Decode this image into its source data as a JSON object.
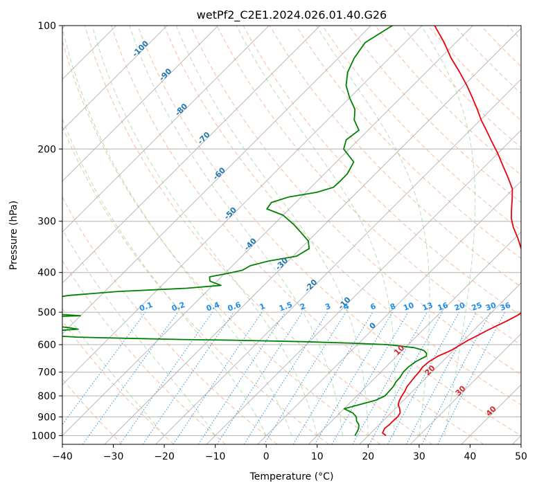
{
  "chart_data": {
    "type": "line",
    "title": "wetPf2_C2E1.2024.026.01.40.G26",
    "xlabel": "Temperature (°C)",
    "ylabel": "Pressure (hPa)",
    "xlim": [
      -40,
      50
    ],
    "ylim": [
      1050,
      100
    ],
    "y_scale": "log",
    "grid": true,
    "x_ticks": [
      -40,
      -30,
      -20,
      -10,
      0,
      10,
      20,
      30,
      40,
      50
    ],
    "y_ticks": [
      100,
      200,
      300,
      400,
      500,
      600,
      700,
      800,
      900,
      1000
    ],
    "colors": {
      "temperature": "#e8000b",
      "dewpoint": "#008000",
      "isotherm": "#a9a9a9",
      "dry_adiabat": "#f4a582",
      "moist_adiabat": "#74c476",
      "mixing_ratio": "#1f8ee8",
      "isotherm_label": "#1f77b4",
      "warm_label": "#d62728"
    },
    "series": [
      {
        "key": "temperature",
        "pressure": [
          1000,
          985,
          960,
          940,
          920,
          900,
          880,
          860,
          840,
          820,
          800,
          780,
          760,
          740,
          720,
          700,
          680,
          660,
          640,
          620,
          600,
          585,
          570,
          555,
          540,
          525,
          510,
          500,
          490,
          470,
          450,
          430,
          410,
          390,
          370,
          350,
          330,
          310,
          295,
          280,
          265,
          250,
          235,
          220,
          205,
          190,
          180,
          170,
          160,
          150,
          140,
          130,
          120,
          110,
          100
        ],
        "values": [
          23.5,
          22.3,
          21.8,
          22.0,
          22.0,
          22.1,
          21.8,
          20.9,
          19.8,
          19.2,
          18.8,
          18.5,
          18.0,
          17.8,
          17.6,
          17.5,
          17.2,
          17.4,
          18.1,
          19.5,
          20.3,
          20.9,
          21.8,
          22.6,
          23.6,
          24.7,
          25.6,
          26.0,
          25.6,
          25.2,
          24.4,
          23.0,
          21.4,
          19.2,
          16.2,
          13.3,
          10.6,
          7.5,
          5.4,
          3.6,
          1.8,
          -0.2,
          -3.2,
          -6.5,
          -10.0,
          -14.0,
          -16.8,
          -19.8,
          -22.7,
          -25.9,
          -29.4,
          -33.4,
          -37.9,
          -42.3,
          -47.5
        ]
      },
      {
        "key": "dewpoint",
        "pressure": [
          1000,
          980,
          960,
          940,
          920,
          900,
          880,
          860,
          840,
          820,
          800,
          780,
          760,
          740,
          720,
          700,
          680,
          660,
          640,
          630,
          620,
          610,
          600,
          595,
          590,
          585,
          583,
          580,
          577,
          575,
          570,
          566,
          562,
          558,
          554,
          550,
          545,
          540,
          534,
          528,
          522,
          516,
          510,
          505,
          500,
          495,
          490,
          470,
          455,
          445,
          437,
          430,
          420,
          410,
          402,
          395,
          385,
          375,
          365,
          350,
          335,
          320,
          305,
          290,
          280,
          270,
          262,
          255,
          248,
          240,
          230,
          215,
          200,
          190,
          180,
          170,
          160,
          150,
          140,
          130,
          120,
          110,
          100
        ],
        "values": [
          17.4,
          17.1,
          16.7,
          16.0,
          14.8,
          14.0,
          12.5,
          10.0,
          12.2,
          14.5,
          15.5,
          15.4,
          15.3,
          14.9,
          14.8,
          14.4,
          14.4,
          14.8,
          15.8,
          15.3,
          14.2,
          11.7,
          6.0,
          -1.2,
          -11.1,
          -25.7,
          -35.0,
          -43.3,
          -51.4,
          -56.5,
          -62.2,
          -64.8,
          -66.3,
          -68.0,
          -61.3,
          -57.8,
          -60.1,
          -63.4,
          -66.1,
          -68.5,
          -71.1,
          -73.5,
          -60.0,
          -65.6,
          -68.3,
          -71.8,
          -74.5,
          -72.6,
          -66.2,
          -57.3,
          -44.6,
          -38.4,
          -41.4,
          -42.3,
          -39.4,
          -37.2,
          -36.5,
          -33.8,
          -29.3,
          -28.3,
          -30.0,
          -33.0,
          -36.2,
          -40.0,
          -44.4,
          -44.8,
          -42.5,
          -37.9,
          -35.6,
          -35.5,
          -35.5,
          -36.6,
          -41.1,
          -42.4,
          -41.8,
          -44.7,
          -46.7,
          -50.0,
          -53.1,
          -55.4,
          -56.9,
          -57.8,
          -55.8
        ]
      }
    ],
    "isotherm_labels": [
      "-100",
      "-90",
      "-80",
      "-70",
      "-60",
      "-50",
      "-40",
      "-30",
      "-20",
      "-10",
      "0",
      "10",
      "20",
      "30",
      "40"
    ],
    "mixing_ratio_labels": [
      "0.1",
      "0.2",
      "0.4",
      "0.6",
      "1",
      "1.5",
      "2",
      "3",
      "4",
      "6",
      "8",
      "10",
      "13",
      "16",
      "20",
      "25",
      "30",
      "36"
    ]
  }
}
